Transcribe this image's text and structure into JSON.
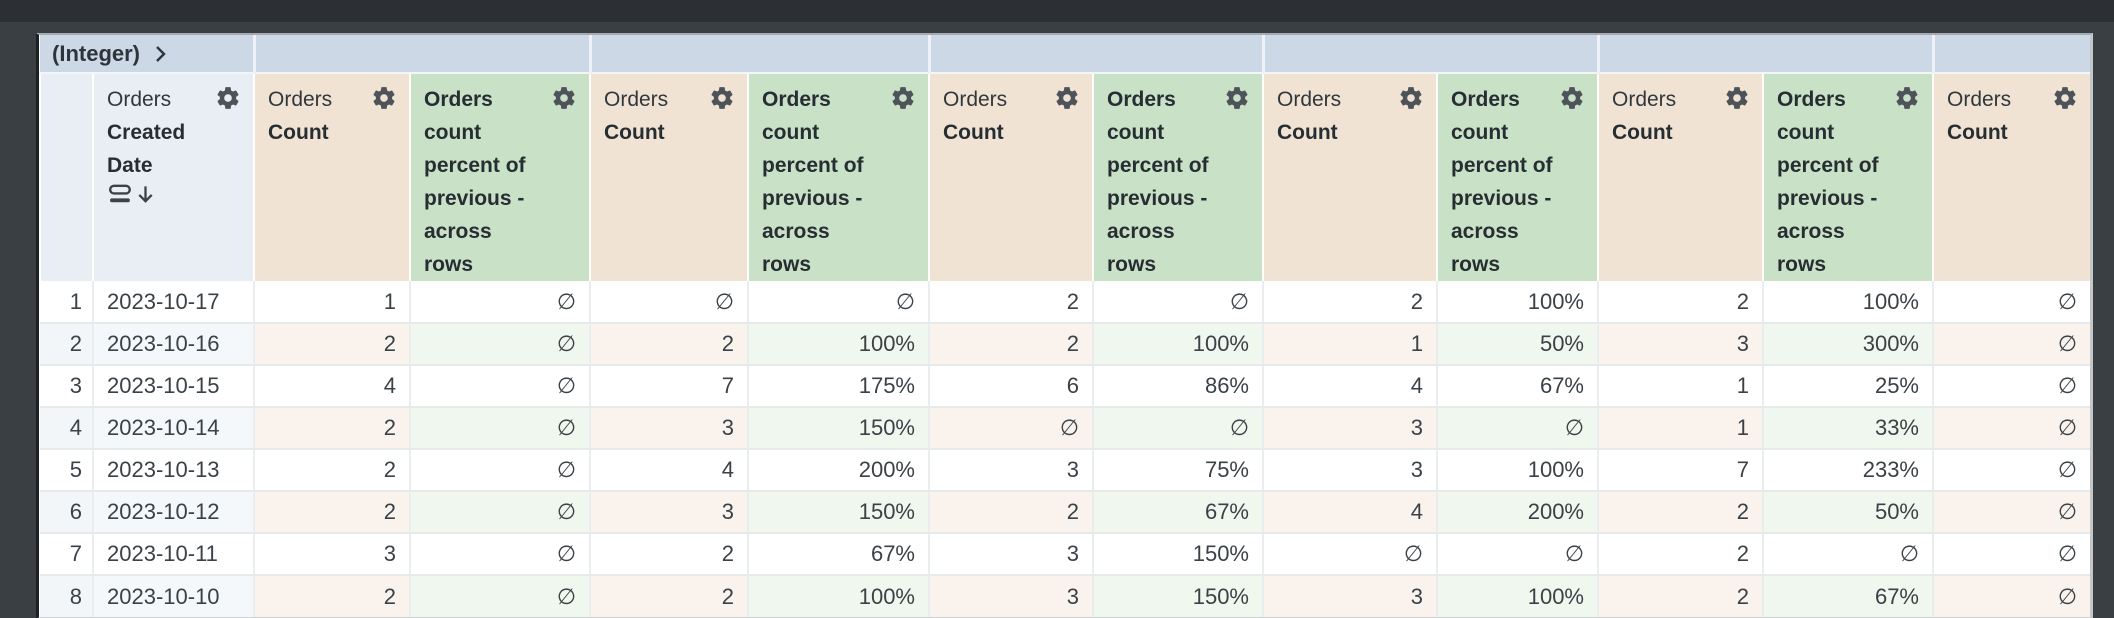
{
  "pivot_band": {
    "label": "(Integer)"
  },
  "header": {
    "date": {
      "view": "Orders",
      "field_line1": "Created",
      "field_line2": "Date"
    },
    "count": {
      "view": "Orders",
      "field": "Count"
    },
    "percent": {
      "label": "Orders count\npercent of\nprevious -\nacross\nrows"
    }
  },
  "columns": [
    {
      "type": "rownum"
    },
    {
      "type": "date"
    },
    {
      "type": "count"
    },
    {
      "type": "percent"
    },
    {
      "type": "count"
    },
    {
      "type": "percent"
    },
    {
      "type": "count"
    },
    {
      "type": "percent"
    },
    {
      "type": "count"
    },
    {
      "type": "percent"
    },
    {
      "type": "count"
    },
    {
      "type": "percent"
    },
    {
      "type": "count"
    }
  ],
  "rows": [
    {
      "num": "1",
      "date": "2023-10-17",
      "values": [
        "1",
        "∅",
        "∅",
        "∅",
        "2",
        "∅",
        "2",
        "100%",
        "2",
        "100%",
        "∅"
      ]
    },
    {
      "num": "2",
      "date": "2023-10-16",
      "values": [
        "2",
        "∅",
        "2",
        "100%",
        "2",
        "100%",
        "1",
        "50%",
        "3",
        "300%",
        "∅"
      ]
    },
    {
      "num": "3",
      "date": "2023-10-15",
      "values": [
        "4",
        "∅",
        "7",
        "175%",
        "6",
        "86%",
        "4",
        "67%",
        "1",
        "25%",
        "∅"
      ]
    },
    {
      "num": "4",
      "date": "2023-10-14",
      "values": [
        "2",
        "∅",
        "3",
        "150%",
        "∅",
        "∅",
        "3",
        "∅",
        "1",
        "33%",
        "∅"
      ]
    },
    {
      "num": "5",
      "date": "2023-10-13",
      "values": [
        "2",
        "∅",
        "4",
        "200%",
        "3",
        "75%",
        "3",
        "100%",
        "7",
        "233%",
        "∅"
      ]
    },
    {
      "num": "6",
      "date": "2023-10-12",
      "values": [
        "2",
        "∅",
        "3",
        "150%",
        "2",
        "67%",
        "4",
        "200%",
        "2",
        "50%",
        "∅"
      ]
    },
    {
      "num": "7",
      "date": "2023-10-11",
      "values": [
        "3",
        "∅",
        "2",
        "67%",
        "3",
        "150%",
        "∅",
        "∅",
        "2",
        "∅",
        "∅"
      ]
    },
    {
      "num": "8",
      "date": "2023-10-10",
      "values": [
        "2",
        "∅",
        "2",
        "100%",
        "3",
        "150%",
        "3",
        "100%",
        "2",
        "67%",
        "∅"
      ]
    }
  ],
  "colors": {
    "bg": "#3a3f44",
    "bg_top": "#2c3034",
    "band_bg": "#ccd8e5",
    "date_header_bg": "#e9eef5",
    "count_header_bg": "#f0e3d3",
    "percent_header_bg": "#c9e1c6",
    "row_even_plain": "#f5f8fa",
    "row_even_count": "#faf3ed",
    "row_even_percent": "#f0f7ef",
    "text": "#3a4247",
    "header_text": "#272e33",
    "rownum_text": "#62696e",
    "icon": "#4d5358"
  }
}
